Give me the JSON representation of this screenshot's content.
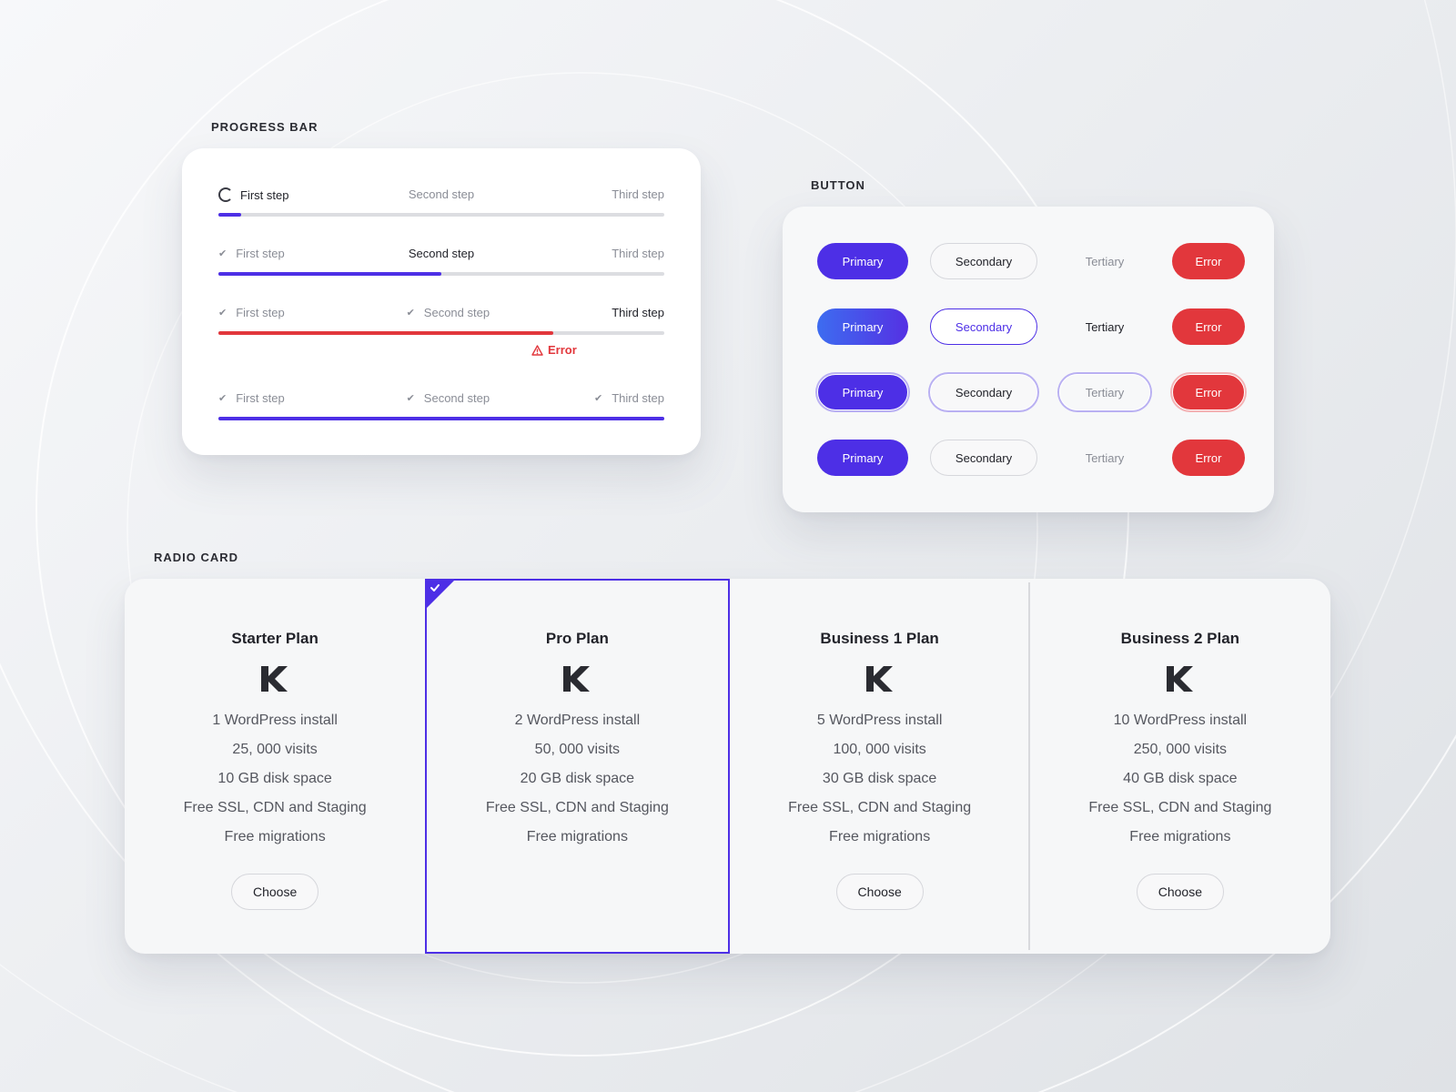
{
  "sections": {
    "progress_title": "PROGRESS BAR",
    "button_title": "BUTTON",
    "radio_title": "RADIO CARD"
  },
  "progress": {
    "steps": [
      "First step",
      "Second step",
      "Third step"
    ],
    "error_text": "Error",
    "rows": [
      {
        "state": [
          "loading",
          "idle",
          "idle"
        ],
        "active_step": 0,
        "fill": 0.05,
        "color": "#4d2fe6"
      },
      {
        "state": [
          "done",
          "idle",
          "idle"
        ],
        "active_step": 1,
        "fill": 0.5,
        "color": "#4d2fe6"
      },
      {
        "state": [
          "done",
          "done",
          "idle"
        ],
        "active_step": 2,
        "fill": 0.75,
        "color": "#e2373c",
        "error": true
      },
      {
        "state": [
          "done",
          "done",
          "done"
        ],
        "active_step": -1,
        "fill": 1.0,
        "color": "#4d2fe6"
      }
    ]
  },
  "buttons": {
    "primary": "Primary",
    "secondary": "Secondary",
    "tertiary": "Tertiary",
    "error": "Error",
    "row_states": [
      "default",
      "hover",
      "focus",
      "pressed"
    ]
  },
  "plans": [
    {
      "title": "Starter Plan",
      "features": [
        "1 WordPress install",
        "25, 000 visits",
        "10 GB disk space",
        "Free SSL, CDN and Staging",
        "Free migrations"
      ],
      "button": "Choose",
      "selected": false
    },
    {
      "title": "Pro Plan",
      "features": [
        "2 WordPress install",
        "50, 000 visits",
        "20 GB disk space",
        "Free SSL, CDN and Staging",
        "Free migrations"
      ],
      "button": "",
      "selected": true
    },
    {
      "title": "Business 1 Plan",
      "features": [
        "5 WordPress install",
        "100, 000 visits",
        "30 GB disk space",
        "Free SSL, CDN and Staging",
        "Free migrations"
      ],
      "button": "Choose",
      "selected": false
    },
    {
      "title": "Business 2 Plan",
      "features": [
        "10 WordPress install",
        "250, 000 visits",
        "40 GB disk space",
        "Free SSL, CDN and Staging",
        "Free migrations"
      ],
      "button": "Choose",
      "selected": false
    }
  ],
  "colors": {
    "accent": "#4d2fe6",
    "error": "#e2373c",
    "muted": "#8a8d96",
    "track": "#dcdde1"
  },
  "icons": {
    "loading": "spinner-icon",
    "done": "check-icon",
    "error": "warning-icon",
    "logo": "kinsta-k-logo",
    "selected": "corner-check-icon"
  }
}
